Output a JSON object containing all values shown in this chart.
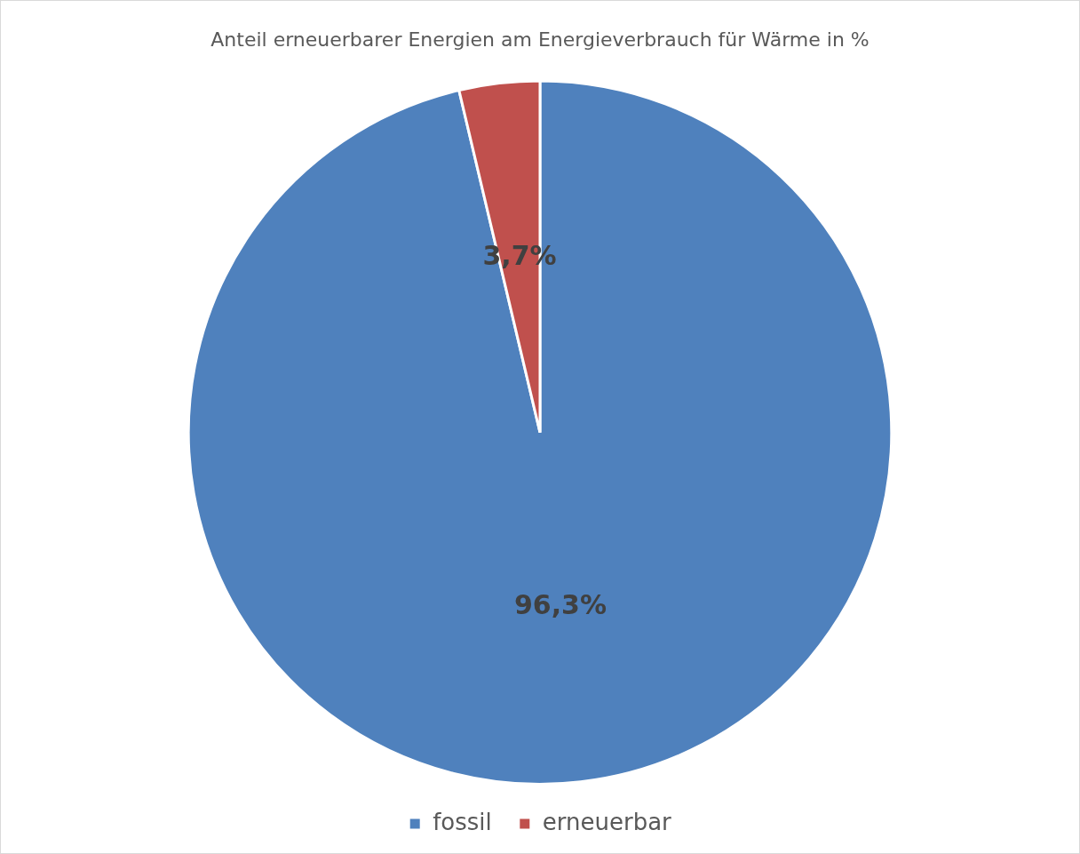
{
  "chart_data": {
    "type": "pie",
    "title": "Anteil erneuerbarer Energien am Energieverbrauch für Wärme in %",
    "categories": [
      "fossil",
      "erneuerbar"
    ],
    "values": [
      96.3,
      3.7
    ],
    "colors": [
      "#4f81bd",
      "#c0504d"
    ],
    "value_labels": [
      "96,3%",
      "3,7%"
    ],
    "legend": "bottom"
  }
}
